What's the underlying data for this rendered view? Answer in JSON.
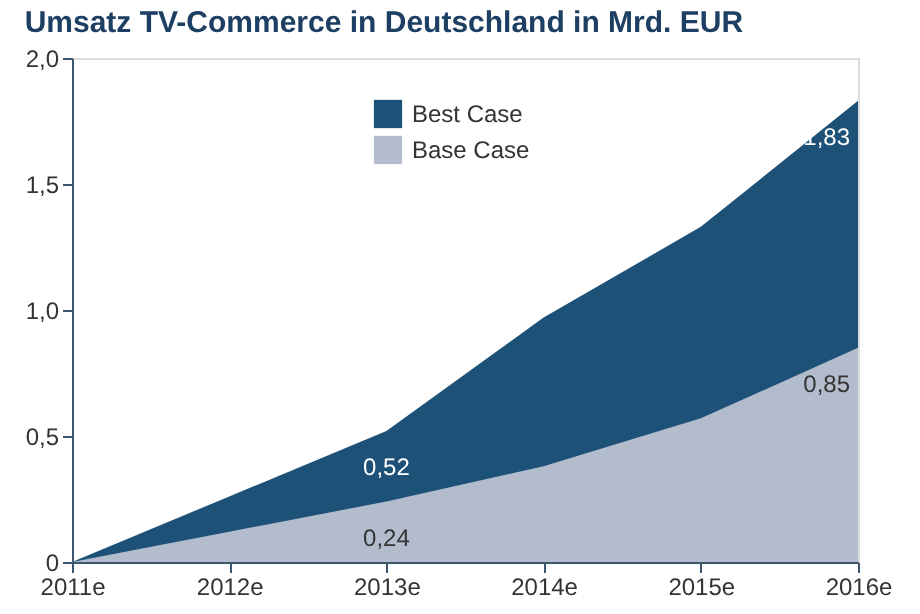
{
  "chart_data": {
    "type": "area",
    "title": "Umsatz TV-Commerce in Deutschland in Mrd. EUR",
    "categories": [
      "2011e",
      "2012e",
      "2013e",
      "2014e",
      "2015e",
      "2016e"
    ],
    "series": [
      {
        "name": "Best Case",
        "color": "#1d5177",
        "values": [
          0,
          0.26,
          0.52,
          0.97,
          1.33,
          1.83
        ],
        "value_labels": [
          null,
          null,
          "0,52",
          null,
          null,
          "1,83"
        ]
      },
      {
        "name": "Base Case",
        "color": "#b3bccd",
        "values": [
          0,
          0.12,
          0.24,
          0.38,
          0.57,
          0.85
        ],
        "value_labels": [
          null,
          null,
          "0,24",
          null,
          null,
          "0,85"
        ]
      }
    ],
    "ylim": [
      0,
      2.0
    ],
    "yticks": [
      0,
      {
        "value": 0.5,
        "label": "0,5"
      },
      {
        "value": 1.0,
        "label": "1,0"
      },
      {
        "value": 1.5,
        "label": "1,5"
      },
      {
        "value": 2.0,
        "label": "2,0"
      }
    ],
    "grid": false,
    "legend": "top"
  }
}
